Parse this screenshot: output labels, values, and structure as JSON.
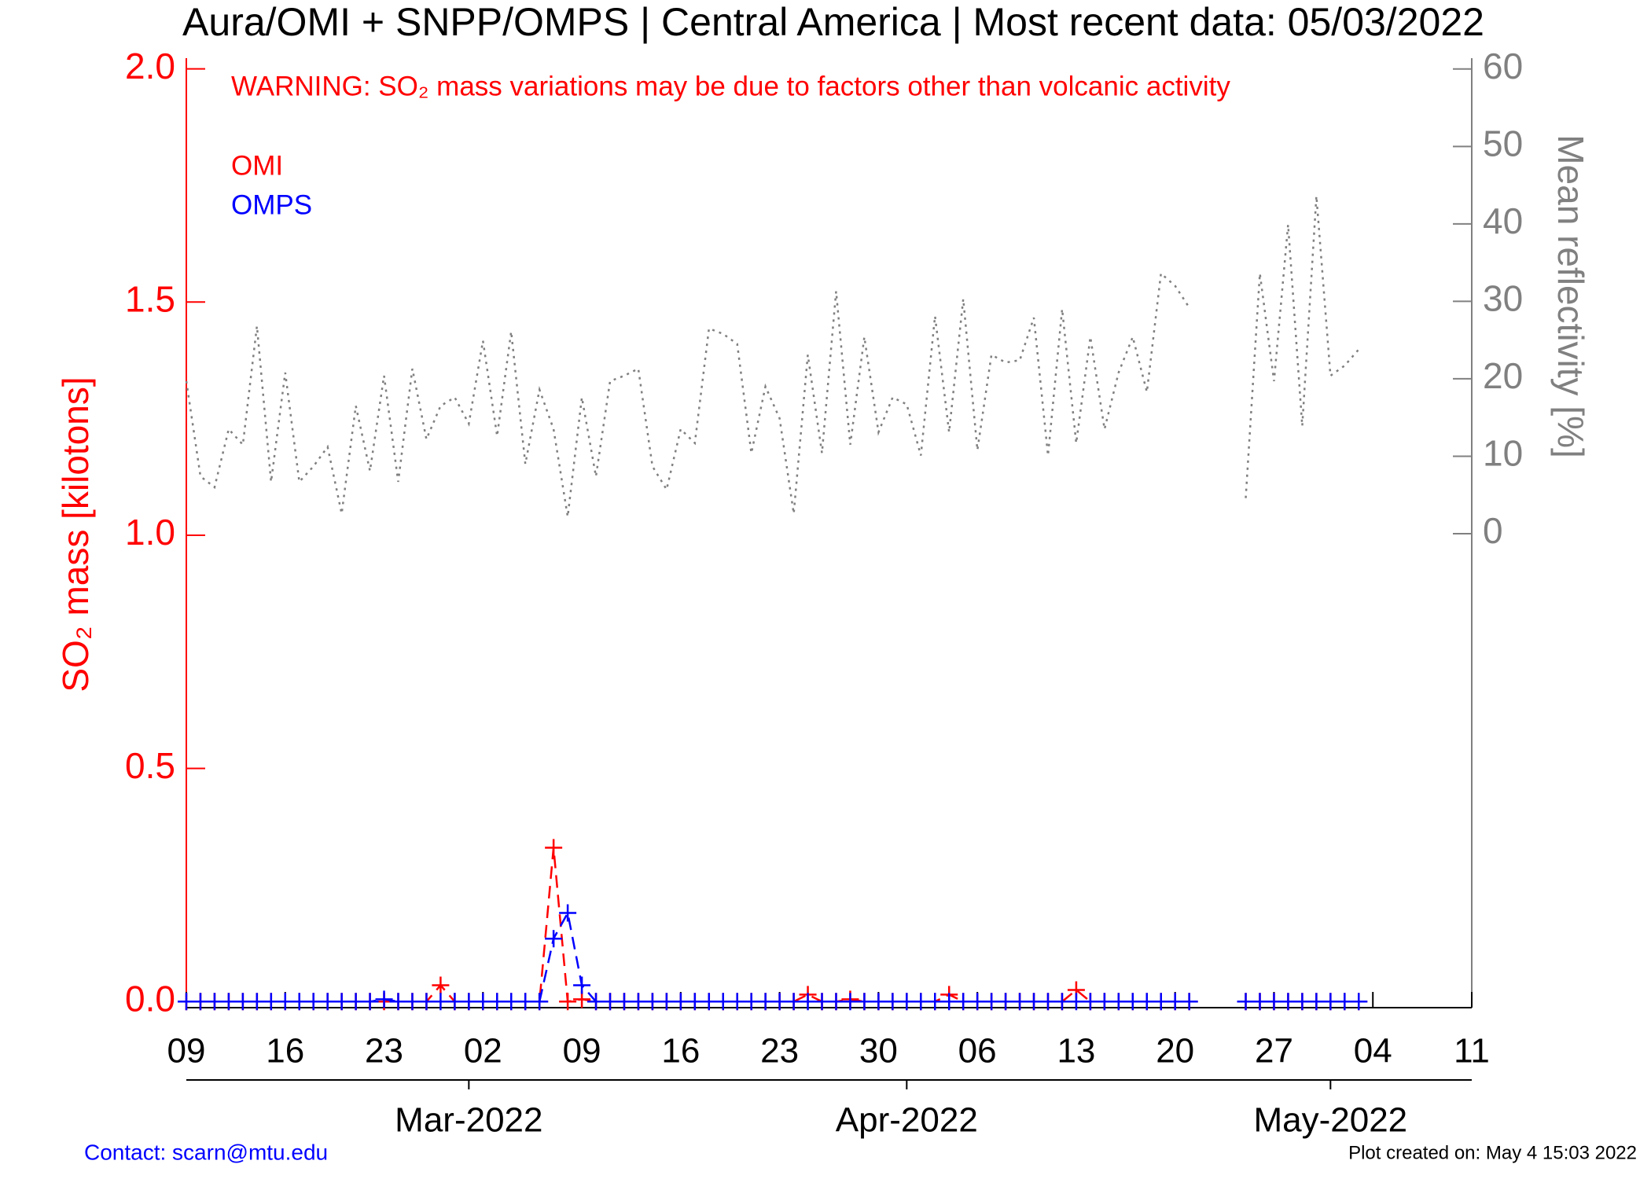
{
  "chart_data": {
    "type": "line",
    "title": "Aura/OMI + SNPP/OMPS | Central America | Most recent data: 05/03/2022",
    "warning": "WARNING: SO₂ mass variations may be due to factors other than volcanic activity",
    "y_label": "SO₂ mass [kilotons]",
    "y2_label": "Mean reflectivity [%]",
    "contact": "Contact: scarn@mtu.edu",
    "created": "Plot created on: May  4 15:03 2022",
    "xlim": [
      "2022-02-09",
      "2022-05-11"
    ],
    "xticks": [
      {
        "value": "2022-02-09",
        "label": "09"
      },
      {
        "value": "2022-02-16",
        "label": "16"
      },
      {
        "value": "2022-02-23",
        "label": "23"
      },
      {
        "value": "2022-03-02",
        "label": "02"
      },
      {
        "value": "2022-03-09",
        "label": "09"
      },
      {
        "value": "2022-03-16",
        "label": "16"
      },
      {
        "value": "2022-03-23",
        "label": "23"
      },
      {
        "value": "2022-03-30",
        "label": "30"
      },
      {
        "value": "2022-04-06",
        "label": "06"
      },
      {
        "value": "2022-04-13",
        "label": "13"
      },
      {
        "value": "2022-04-20",
        "label": "20"
      },
      {
        "value": "2022-04-27",
        "label": "27"
      },
      {
        "value": "2022-05-04",
        "label": "04"
      },
      {
        "value": "2022-05-11",
        "label": "11"
      }
    ],
    "month_ticks": [
      {
        "value": "2022-03-01",
        "label": "Mar-2022"
      },
      {
        "value": "2022-04-01",
        "label": "Apr-2022"
      },
      {
        "value": "2022-05-01",
        "label": "May-2022"
      }
    ],
    "ylim": [
      -0.013,
      2.023
    ],
    "yticks": [
      {
        "value": 0,
        "label": "0.0"
      },
      {
        "value": 0.5,
        "label": "0.5"
      },
      {
        "value": 1,
        "label": "1.0"
      },
      {
        "value": 1.5,
        "label": "1.5"
      },
      {
        "value": 2,
        "label": "2.0"
      }
    ],
    "y2lim": [
      -61.2,
      61.4
    ],
    "y2ticks": [
      0,
      10,
      20,
      30,
      40,
      50,
      60
    ],
    "x": [
      "2022-02-09",
      "2022-02-10",
      "2022-02-11",
      "2022-02-12",
      "2022-02-13",
      "2022-02-14",
      "2022-02-15",
      "2022-02-16",
      "2022-02-17",
      "2022-02-18",
      "2022-02-19",
      "2022-02-20",
      "2022-02-21",
      "2022-02-22",
      "2022-02-23",
      "2022-02-24",
      "2022-02-25",
      "2022-02-26",
      "2022-02-27",
      "2022-02-28",
      "2022-03-01",
      "2022-03-02",
      "2022-03-03",
      "2022-03-04",
      "2022-03-05",
      "2022-03-06",
      "2022-03-07",
      "2022-03-08",
      "2022-03-09",
      "2022-03-10",
      "2022-03-11",
      "2022-03-12",
      "2022-03-13",
      "2022-03-14",
      "2022-03-15",
      "2022-03-16",
      "2022-03-17",
      "2022-03-18",
      "2022-03-19",
      "2022-03-20",
      "2022-03-21",
      "2022-03-22",
      "2022-03-23",
      "2022-03-24",
      "2022-03-25",
      "2022-03-26",
      "2022-03-27",
      "2022-03-28",
      "2022-03-29",
      "2022-03-30",
      "2022-03-31",
      "2022-04-01",
      "2022-04-02",
      "2022-04-03",
      "2022-04-04",
      "2022-04-05",
      "2022-04-06",
      "2022-04-07",
      "2022-04-08",
      "2022-04-09",
      "2022-04-10",
      "2022-04-11",
      "2022-04-12",
      "2022-04-13",
      "2022-04-14",
      "2022-04-15",
      "2022-04-16",
      "2022-04-17",
      "2022-04-18",
      "2022-04-19",
      "2022-04-20",
      "2022-04-21",
      "2022-04-22",
      "2022-04-23",
      "2022-04-24",
      "2022-04-25",
      "2022-04-26",
      "2022-04-27",
      "2022-04-28",
      "2022-04-29",
      "2022-04-30",
      "2022-05-01",
      "2022-05-02",
      "2022-05-03"
    ],
    "series": [
      {
        "axis": "y2",
        "color": "#808080",
        "values": [
          19.7,
          7.4,
          6,
          13.5,
          11.5,
          26.8,
          6.7,
          20.8,
          6.7,
          8.7,
          11.2,
          2.6,
          16.5,
          8.1,
          20.4,
          6.7,
          21.3,
          12.2,
          16.5,
          17.6,
          14.2,
          24.9,
          12.6,
          26.1,
          9,
          18.6,
          13.5,
          2.2,
          17.6,
          7.4,
          19.7,
          20.4,
          21.3,
          8.7,
          5.7,
          13.5,
          11.7,
          26.5,
          25.8,
          24.5,
          10.4,
          19,
          14.9,
          2.6,
          23.1,
          10.4,
          31.3,
          11.5,
          25.4,
          13.1,
          17.6,
          16.7,
          10.1,
          28.1,
          13.1,
          30.3,
          10.8,
          23.1,
          22.1,
          22.4,
          27.9,
          10.1,
          29,
          11.7,
          25.4,
          13.5,
          20.8,
          25.4,
          18.3,
          33.6,
          32,
          29.2,
          null,
          null,
          null,
          4.6,
          33.6,
          19.7,
          39.9,
          13.9,
          43.6,
          20.4,
          21.7,
          23.8
        ]
      },
      {
        "name": "OMI",
        "color": "#ff0000",
        "values": [
          0,
          0,
          0,
          0,
          0,
          0,
          0,
          0,
          0,
          0,
          0,
          0,
          0,
          0,
          0,
          0,
          0,
          0,
          0.035,
          0,
          0,
          0,
          0,
          0,
          0,
          0,
          0.33,
          0,
          0.005,
          0,
          0,
          0,
          0,
          0,
          0,
          0,
          0,
          0,
          0,
          0,
          0,
          0,
          0,
          0,
          0.015,
          0,
          0,
          0.005,
          0,
          0,
          0,
          0,
          0,
          0,
          0.015,
          0,
          0,
          0,
          0,
          0,
          0,
          0,
          0,
          0.025,
          0,
          0,
          0,
          0,
          0,
          0,
          0,
          0,
          null,
          null,
          null,
          0,
          0,
          0,
          0,
          0,
          0,
          0,
          0,
          0
        ]
      },
      {
        "name": "OMPS",
        "color": "#0000ff",
        "values": [
          0,
          0,
          0,
          0,
          0,
          0,
          0,
          0,
          0,
          0,
          0,
          0,
          0,
          0,
          0.005,
          0,
          0,
          0,
          0,
          0,
          0,
          0,
          0,
          0,
          0,
          0,
          0.135,
          0.19,
          0.035,
          0,
          0,
          0,
          0,
          0,
          0,
          0,
          0,
          0,
          0,
          0,
          0,
          0,
          0,
          0,
          0,
          0,
          0,
          0,
          0,
          0,
          0,
          0,
          0,
          0,
          0,
          0,
          0,
          0,
          0,
          0,
          0,
          0,
          0,
          0,
          0,
          0,
          0,
          0,
          0,
          0,
          0,
          0,
          null,
          null,
          null,
          0,
          0,
          0,
          0,
          0,
          0,
          0,
          0,
          0
        ]
      }
    ]
  }
}
